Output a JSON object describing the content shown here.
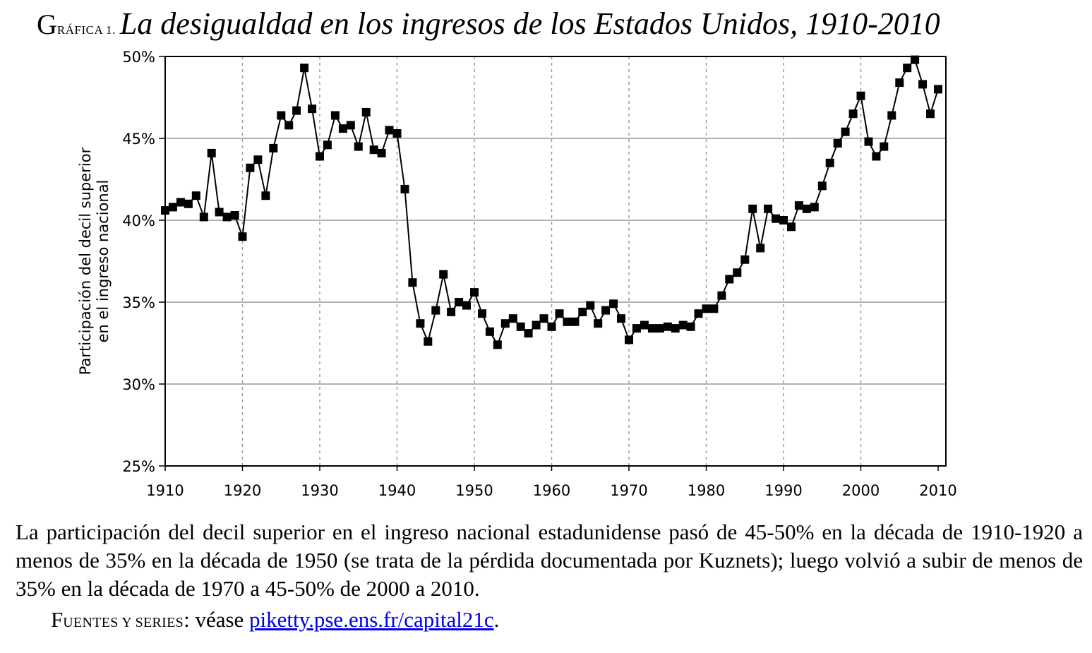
{
  "title": {
    "prefix_first_letter": "G",
    "prefix_rest": "RÁFICA 1.",
    "main": "La desigualdad en los ingresos de los Estados Unidos, 1910-2010"
  },
  "caption": "La participación del decil superior en el ingreso nacional estadunidense pasó de 45-50% en la década de 1910-1920 a menos de 35% en la década de 1950 (se trata de la pérdida documentada por Kuznets); luego volvió a subir de menos de 35% en la década de 1970 a 45-50% de 2000 a 2010.",
  "sources": {
    "label_first": "F",
    "label_rest": "UENTES Y SERIES",
    "colon": ":",
    "text": " véase ",
    "link": "piketty.pse.ens.fr/capital21c",
    "end": "."
  },
  "colors": {
    "line": "#000000",
    "grid": "#999999",
    "link": "#0000ee"
  },
  "chart_data": {
    "type": "line",
    "title": "La desigualdad en los ingresos de los Estados Unidos, 1910-2010",
    "xlabel": "",
    "ylabel_lines": [
      "Participación del decil superior",
      "en el ingreso nacional"
    ],
    "xlim": [
      1910,
      2010
    ],
    "ylim": [
      25,
      50
    ],
    "xticks": [
      1910,
      1920,
      1930,
      1940,
      1950,
      1960,
      1970,
      1980,
      1990,
      2000,
      2010
    ],
    "xtick_labels": [
      "1910",
      "1920",
      "1930",
      "1940",
      "1950",
      "1960",
      "1970",
      "1980",
      "1990",
      "2000",
      "2010"
    ],
    "yticks": [
      25,
      30,
      35,
      40,
      45,
      50
    ],
    "ytick_labels": [
      "25%",
      "30%",
      "35%",
      "40%",
      "45%",
      "50%"
    ],
    "grid": "horizontal solid, vertical dotted",
    "marker": "square",
    "series": [
      {
        "name": "Participación del decil superior",
        "x": [
          1910,
          1911,
          1912,
          1913,
          1914,
          1915,
          1916,
          1917,
          1918,
          1919,
          1920,
          1921,
          1922,
          1923,
          1924,
          1925,
          1926,
          1927,
          1928,
          1929,
          1930,
          1931,
          1932,
          1933,
          1934,
          1935,
          1936,
          1937,
          1938,
          1939,
          1940,
          1941,
          1942,
          1943,
          1944,
          1945,
          1946,
          1947,
          1948,
          1949,
          1950,
          1951,
          1952,
          1953,
          1954,
          1955,
          1956,
          1957,
          1958,
          1959,
          1960,
          1961,
          1962,
          1963,
          1964,
          1965,
          1966,
          1967,
          1968,
          1969,
          1970,
          1971,
          1972,
          1973,
          1974,
          1975,
          1976,
          1977,
          1978,
          1979,
          1980,
          1981,
          1982,
          1983,
          1984,
          1985,
          1986,
          1987,
          1988,
          1989,
          1990,
          1991,
          1992,
          1993,
          1994,
          1995,
          1996,
          1997,
          1998,
          1999,
          2000,
          2001,
          2002,
          2003,
          2004,
          2005,
          2006,
          2007,
          2008,
          2009,
          2010
        ],
        "values": [
          40.6,
          40.8,
          41.1,
          41.0,
          41.5,
          40.2,
          44.1,
          40.5,
          40.2,
          40.3,
          39.0,
          43.2,
          43.7,
          41.5,
          44.4,
          46.4,
          45.8,
          46.7,
          49.3,
          46.8,
          43.9,
          44.6,
          46.4,
          45.6,
          45.8,
          44.5,
          46.6,
          44.3,
          44.1,
          45.5,
          45.3,
          41.9,
          36.2,
          33.7,
          32.6,
          34.5,
          36.7,
          34.4,
          35.0,
          34.8,
          35.6,
          34.3,
          33.2,
          32.4,
          33.7,
          34.0,
          33.5,
          33.1,
          33.6,
          34.0,
          33.5,
          34.3,
          33.8,
          33.8,
          34.4,
          34.8,
          33.7,
          34.5,
          34.9,
          34.0,
          32.7,
          33.4,
          33.6,
          33.4,
          33.4,
          33.5,
          33.4,
          33.6,
          33.5,
          34.3,
          34.6,
          34.6,
          35.4,
          36.4,
          36.8,
          37.6,
          40.7,
          38.3,
          40.7,
          40.1,
          40.0,
          39.6,
          40.9,
          40.7,
          40.8,
          42.1,
          43.5,
          44.7,
          45.4,
          46.5,
          47.6,
          44.8,
          43.9,
          44.5,
          46.4,
          48.4,
          49.3,
          49.8,
          48.3,
          46.5,
          48.0
        ]
      }
    ]
  }
}
